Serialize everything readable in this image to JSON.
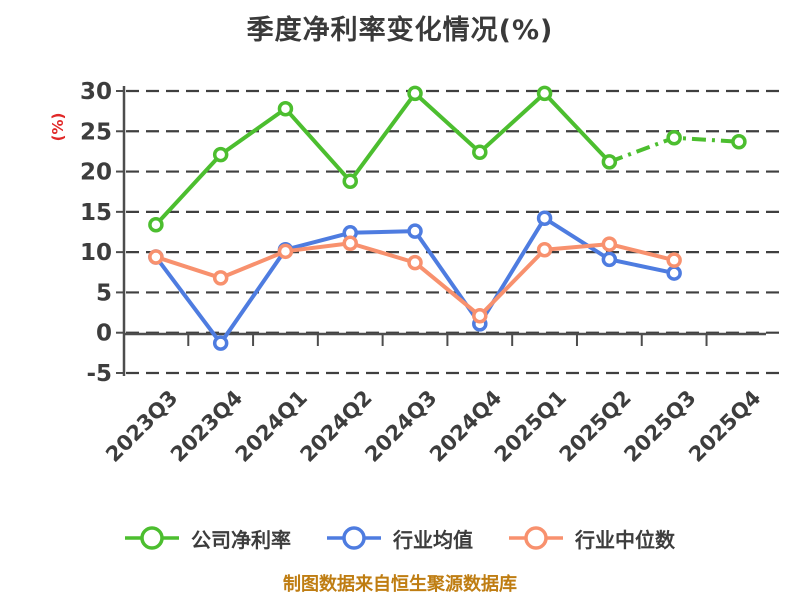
{
  "footer": {
    "caption": "制图数据来自恒生聚源数据库"
  },
  "colors": {
    "company_green": "#4cbe2f",
    "industry_avg_blue": "#4e7ce0",
    "industry_median_orange": "#f8916e",
    "axis": "#4d4d4d",
    "gridline": "#3f3f3f",
    "tick_label": "#3d3d3d",
    "title_text": "#3a3a3a",
    "y_unit_label_red": "#e12727",
    "footer_orange": "#bf7d12",
    "marker_fill": "#ffffff",
    "background": "#ffffff"
  },
  "chart_data": {
    "type": "line",
    "title": "季度净利率变化情况(%)",
    "ylabel": "(%)",
    "xlabel": "",
    "categories": [
      "2023Q3",
      "2023Q4",
      "2024Q1",
      "2024Q2",
      "2024Q3",
      "2024Q4",
      "2025Q1",
      "2025Q2",
      "2025Q3",
      "2025Q4"
    ],
    "series": [
      {
        "name": "公司净利率",
        "color": "#4cbe2f",
        "marker": "circle",
        "values": [
          13.4,
          22.1,
          27.8,
          18.8,
          29.7,
          22.4,
          29.7,
          21.2,
          24.2,
          23.7
        ],
        "dash_from_index": 7
      },
      {
        "name": "行业均值",
        "color": "#4e7ce0",
        "marker": "circle",
        "values": [
          9.4,
          -1.3,
          10.3,
          12.4,
          12.6,
          1.1,
          14.2,
          9.1,
          7.4,
          null
        ]
      },
      {
        "name": "行业中位数",
        "color": "#f8916e",
        "marker": "circle",
        "values": [
          9.4,
          6.8,
          10.1,
          11.1,
          8.7,
          2.1,
          10.3,
          11.0,
          9.0,
          null
        ]
      }
    ],
    "y_ticks": [
      30,
      25,
      20,
      15,
      10,
      5,
      0,
      -5
    ],
    "ylim": [
      -5,
      30
    ],
    "grid": "horizontal dashed",
    "legend_position": "bottom"
  }
}
